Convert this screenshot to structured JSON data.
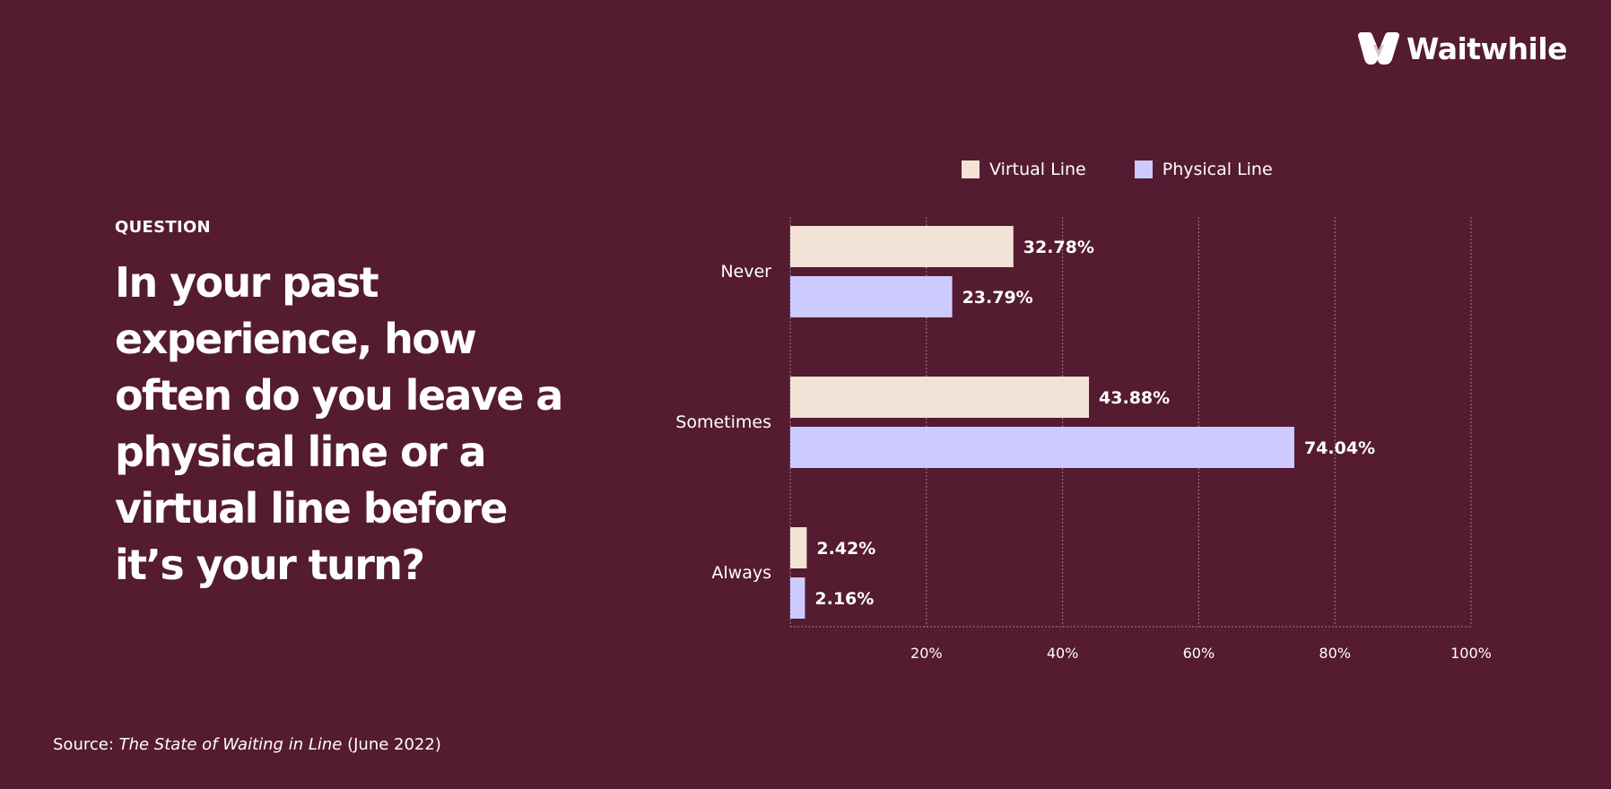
{
  "brand": {
    "name": "Waitwhile"
  },
  "question": {
    "label": "QUESTION",
    "text": "In your past experience, how often do you leave a physical line or a virtual line before it’s your turn?"
  },
  "source": {
    "prefix": "Source: ",
    "title": "The State of Waiting in Line",
    "suffix": " (June 2022)"
  },
  "colors": {
    "background": "#541b31",
    "virtual": "#f3e2d6",
    "physical": "#cccaff",
    "grid": "#a57a8a"
  },
  "chart_data": {
    "type": "bar",
    "orientation": "horizontal",
    "categories": [
      "Never",
      "Sometimes",
      "Always"
    ],
    "series": [
      {
        "name": "Virtual Line",
        "values": [
          32.78,
          43.88,
          2.42
        ],
        "labels": [
          "32.78%",
          "43.88%",
          "2.42%"
        ],
        "color": "#f3e2d6"
      },
      {
        "name": "Physical Line",
        "values": [
          23.79,
          74.04,
          2.16
        ],
        "labels": [
          "23.79%",
          "74.04%",
          "2.16%"
        ],
        "color": "#cccaff"
      }
    ],
    "xlim": [
      0,
      100
    ],
    "xticks": [
      20,
      40,
      60,
      80,
      100
    ],
    "xtick_labels": [
      "20%",
      "40%",
      "60%",
      "80%",
      "100%"
    ],
    "grid": true,
    "legend_position": "top"
  }
}
